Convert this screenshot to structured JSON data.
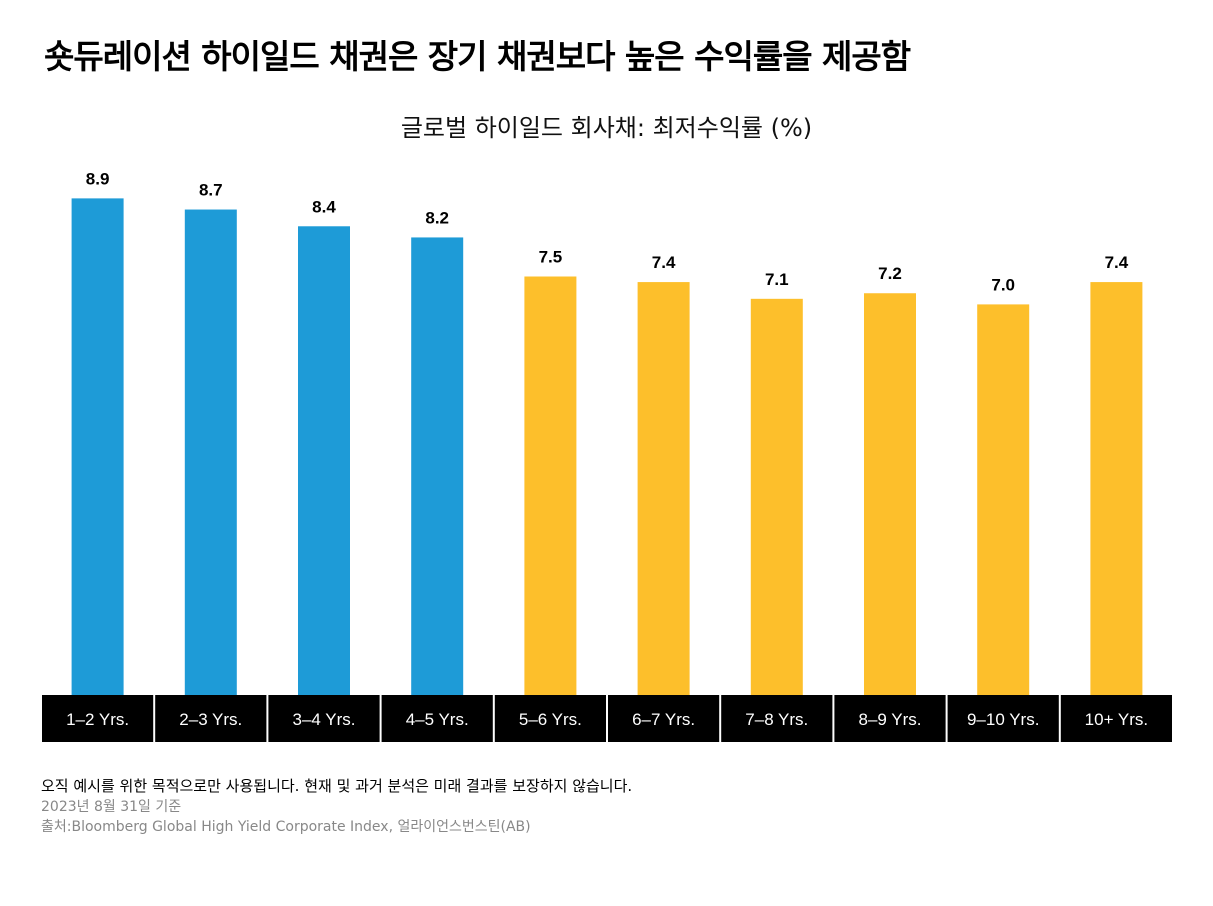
{
  "title": "숏듀레이션 하이일드 채권은 장기 채권보다 높은 수익률을 제공함",
  "chart_data": {
    "type": "bar",
    "title": "글로벌 하이일드 회사채: 최저수익률 (%)",
    "categories": [
      "1–2 Yrs.",
      "2–3 Yrs.",
      "3–4 Yrs.",
      "4–5 Yrs.",
      "5–6 Yrs.",
      "6–7 Yrs.",
      "7–8 Yrs.",
      "8–9 Yrs.",
      "9–10 Yrs.",
      "10+ Yrs."
    ],
    "values": [
      8.9,
      8.7,
      8.4,
      8.2,
      7.5,
      7.4,
      7.1,
      7.2,
      7.0,
      7.4
    ],
    "data_labels": [
      "8.9",
      "8.7",
      "8.4",
      "8.2",
      "7.5",
      "7.4",
      "7.1",
      "7.2",
      "7.0",
      "7.4"
    ],
    "colors": [
      "#1e9bd7",
      "#1e9bd7",
      "#1e9bd7",
      "#1e9bd7",
      "#fdbf2b",
      "#fdbf2b",
      "#fdbf2b",
      "#fdbf2b",
      "#fdbf2b",
      "#fdbf2b"
    ],
    "ylim": [
      0,
      8.9
    ],
    "grid": false
  },
  "footer": {
    "disclaimer": "오직 예시를 위한 목적으로만 사용됩니다. 현재 및 과거 분석은 미래 결과를 보장하지 않습니다.",
    "date": "2023년 8월 31일 기준",
    "source": "출처:Bloomberg Global High Yield Corporate Index, 얼라이언스번스틴(AB)"
  }
}
